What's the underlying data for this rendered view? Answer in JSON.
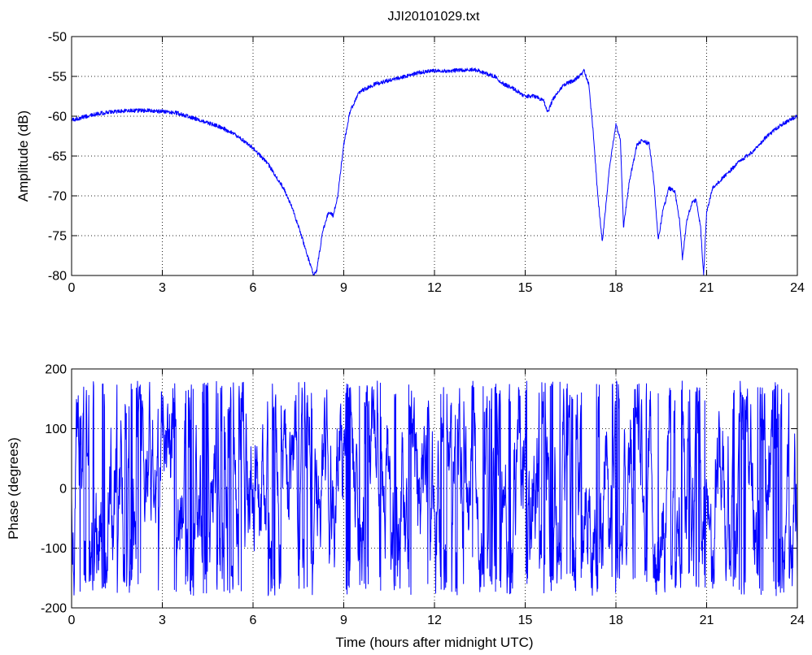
{
  "figure": {
    "title": "JJI20101029.txt"
  },
  "chart_data": [
    {
      "id": "amplitude",
      "type": "line",
      "title": "JJI20101029.txt",
      "xlabel": "",
      "ylabel": "Amplitude (dB)",
      "xlim": [
        0,
        24
      ],
      "ylim": [
        -80,
        -50
      ],
      "xticks": [
        0,
        3,
        6,
        9,
        12,
        15,
        18,
        21,
        24
      ],
      "yticks": [
        -80,
        -75,
        -70,
        -65,
        -60,
        -55,
        -50
      ],
      "grid": true,
      "color": "#0000ff",
      "noise": 0.25,
      "series": [
        {
          "x": [
            0,
            0.5,
            1,
            1.5,
            2,
            2.5,
            3,
            3.5,
            4,
            4.5,
            5,
            5.5,
            6,
            6.5,
            7,
            7.3,
            7.6,
            7.8,
            8.0,
            8.1,
            8.3,
            8.5,
            8.65,
            8.8,
            9.0,
            9.2,
            9.5,
            10,
            10.5,
            11,
            11.5,
            12,
            12.5,
            13,
            13.3,
            13.6,
            14,
            14.3,
            14.6,
            15,
            15.3,
            15.6,
            15.75,
            15.9,
            16.1,
            16.3,
            16.6,
            16.8,
            16.95,
            17.1,
            17.25,
            17.4,
            17.55,
            17.8,
            18.0,
            18.15,
            18.25,
            18.45,
            18.7,
            18.9,
            19.1,
            19.25,
            19.4,
            19.55,
            19.75,
            19.95,
            20.1,
            20.2,
            20.35,
            20.5,
            20.65,
            20.8,
            20.9,
            21.0,
            21.2,
            21.6,
            22,
            22.5,
            23,
            23.5,
            24
          ],
          "y": [
            -60.5,
            -60,
            -59.6,
            -59.4,
            -59.3,
            -59.3,
            -59.4,
            -59.6,
            -60.2,
            -60.8,
            -61.5,
            -62.5,
            -64,
            -66,
            -69,
            -71.5,
            -75,
            -77.5,
            -80,
            -79.5,
            -74.5,
            -72,
            -72.5,
            -70,
            -63.5,
            -59.5,
            -57,
            -56,
            -55.5,
            -55,
            -54.5,
            -54.3,
            -54.3,
            -54.2,
            -54.1,
            -54.5,
            -55,
            -56,
            -56.5,
            -57.5,
            -57.5,
            -58,
            -59.5,
            -58,
            -57,
            -56,
            -55.5,
            -55,
            -54.3,
            -56,
            -62,
            -70,
            -75.8,
            -66,
            -61,
            -63,
            -74,
            -68,
            -63.5,
            -63,
            -63.5,
            -68,
            -75.5,
            -72,
            -69,
            -69.5,
            -73,
            -77.8,
            -73,
            -71,
            -70.5,
            -74,
            -80,
            -72,
            -69,
            -67.5,
            -66,
            -64.5,
            -62.5,
            -61,
            -60
          ]
        }
      ]
    },
    {
      "id": "phase",
      "type": "line",
      "title": "",
      "xlabel": "Time (hours after midnight UTC)",
      "ylabel": "Phase (degrees)",
      "xlim": [
        0,
        24
      ],
      "ylim": [
        -200,
        200
      ],
      "xticks": [
        0,
        3,
        6,
        9,
        12,
        15,
        18,
        21,
        24
      ],
      "yticks": [
        -200,
        -100,
        0,
        100,
        200
      ],
      "grid": true,
      "color": "#0000ff",
      "wrap_range": [
        -180,
        180
      ],
      "series": [
        {
          "x_start": 0,
          "x_end": 24,
          "x_step": 0.01
        }
      ]
    }
  ]
}
